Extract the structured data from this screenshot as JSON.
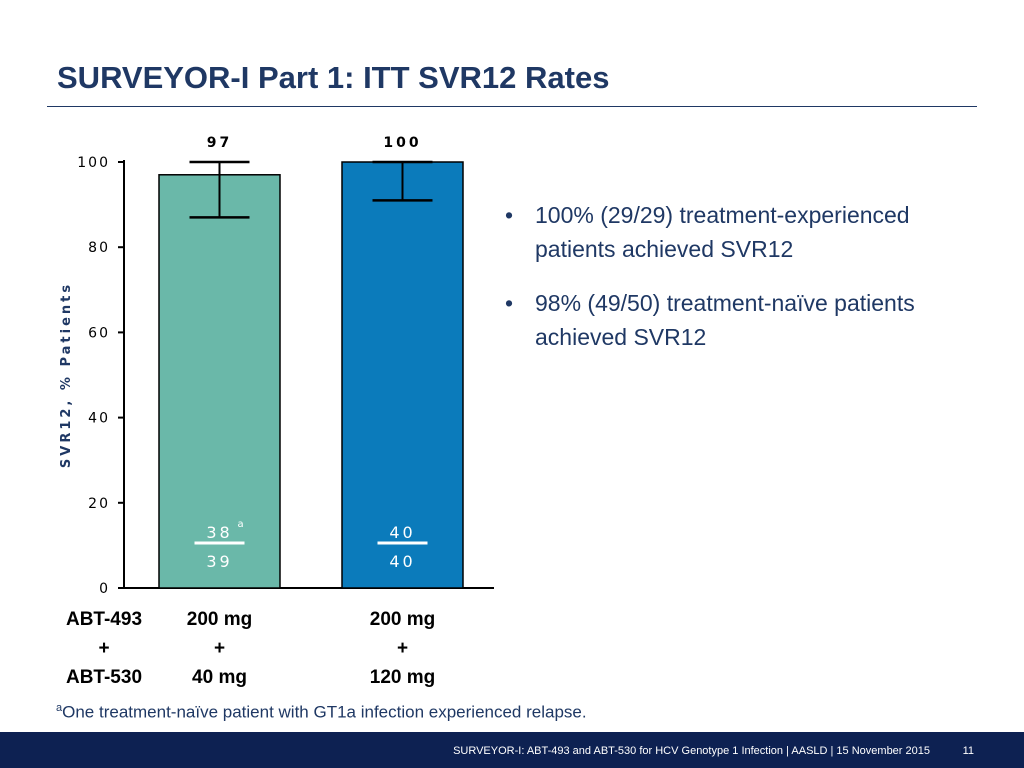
{
  "title": "SURVEYOR-I Part 1: ITT SVR12 Rates",
  "chart_data": {
    "type": "bar",
    "ylabel": "SVR12, % Patients",
    "ylim": [
      0,
      100
    ],
    "yticks": [
      0,
      20,
      40,
      60,
      80,
      100
    ],
    "yticklabels": [
      "0",
      "20",
      "40",
      "60",
      "80",
      "100"
    ],
    "bars": [
      {
        "value": 97,
        "label": "97",
        "color": "#6ab8a9",
        "error_low": 87,
        "error_high": 100,
        "numerator": "38",
        "denominator": "39",
        "superscript": "a",
        "category_lines": [
          "200 mg",
          "+",
          "40 mg"
        ]
      },
      {
        "value": 100,
        "label": "100",
        "color": "#0b7bbb",
        "error_low": 91,
        "error_high": 100,
        "numerator": "40",
        "denominator": "40",
        "superscript": "",
        "category_lines": [
          "200 mg",
          "+",
          "120 mg"
        ]
      }
    ],
    "row_header_lines": [
      "ABT-493",
      "+",
      "ABT-530"
    ]
  },
  "bullets": [
    "100% (29/29) treatment-experienced patients achieved SVR12",
    "98% (49/50) treatment-naïve patients achieved SVR12"
  ],
  "bullet_marker": "•",
  "footnote": {
    "marker": "a",
    "text": "One treatment-naïve patient with GT1a infection experienced relapse."
  },
  "footer": {
    "text": "SURVEYOR-I: ABT-493 and ABT-530 for HCV Genotype 1 Infection   | AASLD | 15 November 2015",
    "page": "11"
  },
  "colors": {
    "title": "#1f3864",
    "axis_label": "#1f3864",
    "footer_bg": "#0d2152"
  }
}
